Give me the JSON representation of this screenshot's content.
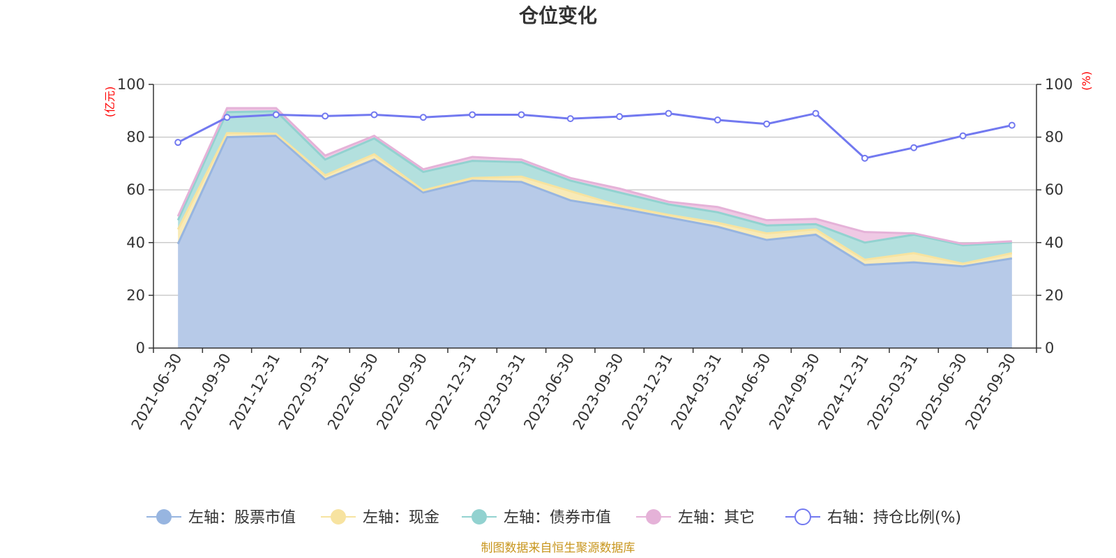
{
  "chart_data": {
    "type": "area",
    "title": "仓位变化",
    "left_axis_unit": "(亿元)",
    "right_axis_unit": "(%)",
    "ylim_left": [
      0,
      100
    ],
    "ylim_right": [
      0,
      100
    ],
    "y_ticks_left": [
      "0",
      "20",
      "40",
      "60",
      "80",
      "100"
    ],
    "y_ticks_right": [
      "0",
      "20",
      "40",
      "60",
      "80",
      "100"
    ],
    "categories": [
      "2021-06-30",
      "2021-09-30",
      "2021-12-31",
      "2022-03-31",
      "2022-06-30",
      "2022-09-30",
      "2022-12-31",
      "2023-03-31",
      "2023-06-30",
      "2023-09-30",
      "2023-12-31",
      "2024-03-31",
      "2024-06-30",
      "2024-09-30",
      "2024-12-31",
      "2025-03-31",
      "2025-06-30",
      "2025-09-30"
    ],
    "series": [
      {
        "name": "左轴：股票市值",
        "axis": "left",
        "stacked": true,
        "color": "#97b5e0",
        "fill": "#b7cae8",
        "values": [
          39.5,
          80.0,
          80.5,
          64.0,
          71.5,
          59.0,
          63.5,
          63.0,
          56.0,
          53.0,
          49.5,
          46.0,
          41.0,
          43.0,
          31.5,
          32.5,
          31.0,
          34.0
        ]
      },
      {
        "name": "左轴：现金",
        "axis": "left",
        "stacked": true,
        "color": "#f7e3a0",
        "fill": "#f8eab7",
        "values": [
          5.5,
          1.5,
          0.8,
          1.5,
          2.0,
          0.8,
          1.0,
          2.0,
          3.5,
          1.0,
          1.0,
          1.5,
          2.5,
          2.0,
          2.0,
          3.5,
          1.0,
          2.0
        ]
      },
      {
        "name": "左轴：债券市值",
        "axis": "left",
        "stacked": true,
        "color": "#92d2d0",
        "fill": "#b3e0de",
        "values": [
          3.5,
          8.0,
          8.5,
          6.0,
          6.0,
          7.0,
          6.5,
          5.5,
          4.0,
          5.0,
          4.0,
          4.0,
          3.0,
          2.0,
          6.5,
          7.0,
          7.0,
          4.0
        ]
      },
      {
        "name": "左轴：其它",
        "axis": "left",
        "stacked": true,
        "color": "#e5b2d8",
        "fill": "#efc9e4",
        "values": [
          1.5,
          1.5,
          1.2,
          1.5,
          1.0,
          1.0,
          1.5,
          1.0,
          1.0,
          1.5,
          1.0,
          2.0,
          2.0,
          2.0,
          4.0,
          0.5,
          0.5,
          0.5
        ]
      },
      {
        "name": "右轴：持仓比例(%)",
        "axis": "right",
        "stacked": false,
        "color": "#7279f0",
        "values": [
          78.0,
          87.5,
          88.5,
          88.0,
          88.5,
          87.5,
          88.5,
          88.5,
          87.0,
          87.8,
          89.0,
          86.5,
          85.0,
          89.0,
          72.0,
          76.0,
          80.5,
          84.5
        ]
      }
    ],
    "legend_position": "bottom-center",
    "grid": true
  },
  "footer": {
    "source_text": "制图数据来自恒生聚源数据库"
  }
}
